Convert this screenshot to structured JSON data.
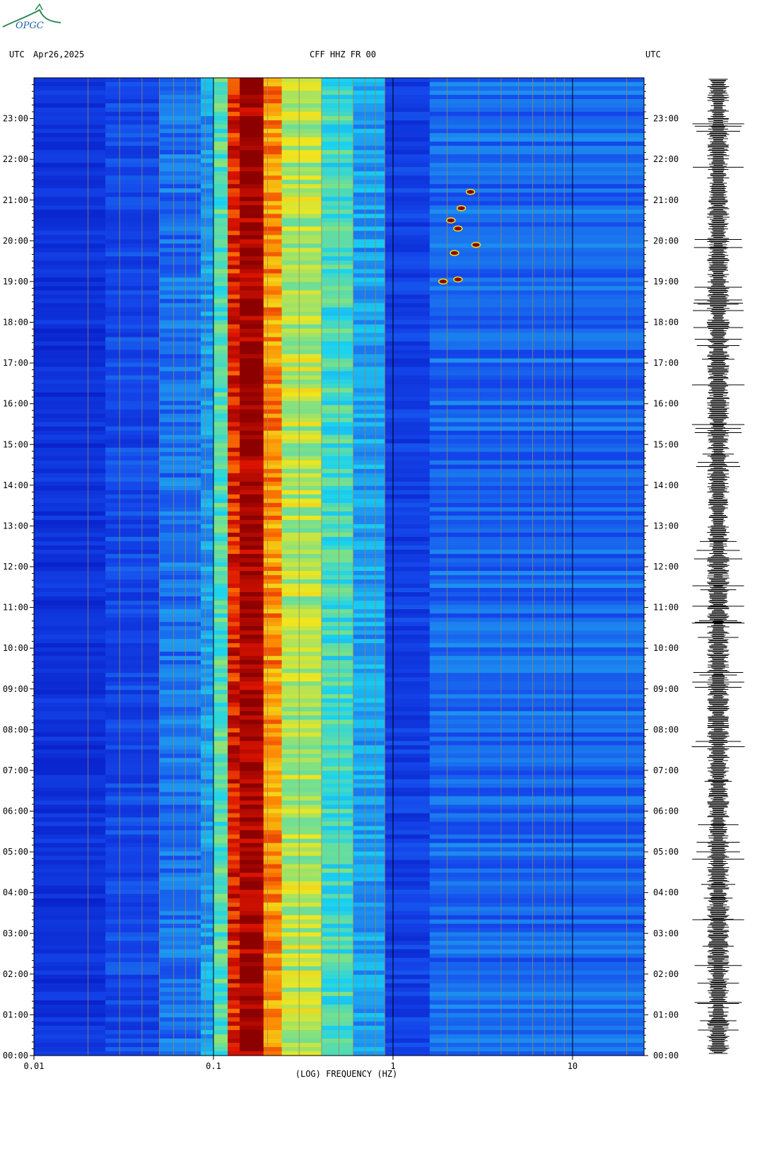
{
  "header": {
    "left_tz": "UTC",
    "date": "Apr26,2025",
    "station": "CFF HHZ FR 00",
    "right_tz": "UTC"
  },
  "logo": {
    "text": "OPGC",
    "color": "#2e8b57"
  },
  "colors": {
    "low": "#0b2fd6",
    "cyan": "#19d2f2",
    "yellow": "#f2e21a",
    "orange": "#ff6a00",
    "dark_red": "#8b0000",
    "gridline": "#9a8a5a",
    "trace": "#000000"
  },
  "chart_data": {
    "type": "heatmap",
    "title": "CFF HHZ FR 00",
    "xlabel": "(LOG) FREQUENCY (HZ)",
    "x_scale": "log",
    "xlim": [
      0.01,
      25
    ],
    "x_ticks": [
      "0.01",
      "0.1",
      "1",
      "10"
    ],
    "ylim_hours_utc": [
      0,
      24
    ],
    "y_ticks": [
      "00:00",
      "01:00",
      "02:00",
      "03:00",
      "04:00",
      "05:00",
      "06:00",
      "07:00",
      "08:00",
      "09:00",
      "10:00",
      "11:00",
      "12:00",
      "13:00",
      "14:00",
      "15:00",
      "16:00",
      "17:00",
      "18:00",
      "19:00",
      "20:00",
      "21:00",
      "22:00",
      "23:00"
    ],
    "bands": [
      {
        "f_from": 0.01,
        "f_to": 0.025,
        "level": 0.1
      },
      {
        "f_from": 0.025,
        "f_to": 0.05,
        "level": 0.18
      },
      {
        "f_from": 0.05,
        "f_to": 0.085,
        "level": 0.28
      },
      {
        "f_from": 0.085,
        "f_to": 0.1,
        "level": 0.36
      },
      {
        "f_from": 0.1,
        "f_to": 0.12,
        "level": 0.52
      },
      {
        "f_from": 0.12,
        "f_to": 0.14,
        "level": 0.9
      },
      {
        "f_from": 0.14,
        "f_to": 0.19,
        "level": 0.98
      },
      {
        "f_from": 0.19,
        "f_to": 0.24,
        "level": 0.78
      },
      {
        "f_from": 0.24,
        "f_to": 0.4,
        "level": 0.62
      },
      {
        "f_from": 0.4,
        "f_to": 0.6,
        "level": 0.5
      },
      {
        "f_from": 0.6,
        "f_to": 0.9,
        "level": 0.36
      },
      {
        "f_from": 0.9,
        "f_to": 1.6,
        "level": 0.15
      },
      {
        "f_from": 1.6,
        "f_to": 25,
        "level": 0.26
      }
    ],
    "events": [
      {
        "freq": 2.7,
        "hour": 21.2
      },
      {
        "freq": 2.4,
        "hour": 20.8
      },
      {
        "freq": 2.1,
        "hour": 20.5
      },
      {
        "freq": 2.3,
        "hour": 20.3
      },
      {
        "freq": 2.9,
        "hour": 19.9
      },
      {
        "freq": 2.2,
        "hour": 19.7
      },
      {
        "freq": 2.3,
        "hour": 19.05
      },
      {
        "freq": 1.9,
        "hour": 19.0
      }
    ]
  }
}
